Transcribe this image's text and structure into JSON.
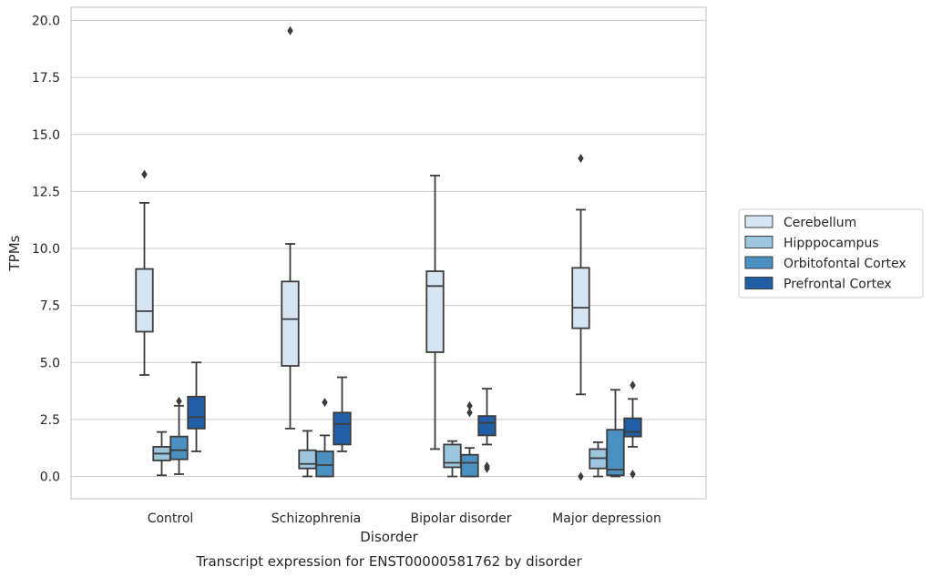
{
  "caption": "Transcript expression for ENST00000581762 by disorder",
  "chart_data": {
    "type": "boxplot",
    "title": "",
    "xlabel": "Disorder",
    "ylabel": "TPMs",
    "ylim": [
      -0.95,
      20.5
    ],
    "yticks": [
      0.0,
      2.5,
      5.0,
      7.5,
      10.0,
      12.5,
      15.0,
      17.5,
      20.0
    ],
    "ytick_labels": [
      "0.0",
      "2.5",
      "5.0",
      "7.5",
      "10.0",
      "12.5",
      "15.0",
      "17.5",
      "20.0"
    ],
    "grid": true,
    "legend_position": "right",
    "categories": [
      "Control",
      "Schizophrenia",
      "Bipolar disorder",
      "Major depression"
    ],
    "series": [
      {
        "name": "Cerebellum",
        "color": "#d6e5f4",
        "boxes": [
          {
            "whislo": 4.45,
            "q1": 6.35,
            "med": 7.25,
            "q3": 9.1,
            "whishi": 12.0,
            "fliers": [
              13.25
            ]
          },
          {
            "whislo": 2.1,
            "q1": 4.85,
            "med": 6.9,
            "q3": 8.55,
            "whishi": 10.2,
            "fliers": [
              19.55
            ]
          },
          {
            "whislo": 1.2,
            "q1": 5.45,
            "med": 8.35,
            "q3": 9.0,
            "whishi": 13.2,
            "fliers": []
          },
          {
            "whislo": 3.6,
            "q1": 6.5,
            "med": 7.4,
            "q3": 9.15,
            "whishi": 11.7,
            "fliers": [
              13.95,
              0.0
            ]
          }
        ]
      },
      {
        "name": "Hipppocampus",
        "color": "#9cc5de",
        "boxes": [
          {
            "whislo": 0.05,
            "q1": 0.7,
            "med": 1.0,
            "q3": 1.3,
            "whishi": 1.95,
            "fliers": []
          },
          {
            "whislo": 0.0,
            "q1": 0.35,
            "med": 0.55,
            "q3": 1.15,
            "whishi": 2.0,
            "fliers": []
          },
          {
            "whislo": 0.0,
            "q1": 0.4,
            "med": 0.6,
            "q3": 1.4,
            "whishi": 1.55,
            "fliers": []
          },
          {
            "whislo": 0.0,
            "q1": 0.35,
            "med": 0.8,
            "q3": 1.2,
            "whishi": 1.5,
            "fliers": []
          }
        ]
      },
      {
        "name": "Orbitofontal Cortex",
        "color": "#4a90c0",
        "boxes": [
          {
            "whislo": 0.1,
            "q1": 0.75,
            "med": 1.15,
            "q3": 1.75,
            "whishi": 3.1,
            "fliers": [
              3.3
            ]
          },
          {
            "whislo": 0.0,
            "q1": 0.0,
            "med": 0.5,
            "q3": 1.1,
            "whishi": 1.8,
            "fliers": [
              3.25
            ]
          },
          {
            "whislo": 0.0,
            "q1": 0.0,
            "med": 0.6,
            "q3": 0.95,
            "whishi": 1.25,
            "fliers": [
              3.1,
              2.8
            ]
          },
          {
            "whislo": 0.0,
            "q1": 0.05,
            "med": 0.3,
            "q3": 2.05,
            "whishi": 3.8,
            "fliers": []
          }
        ]
      },
      {
        "name": "Prefrontal Cortex",
        "color": "#205fa5",
        "boxes": [
          {
            "whislo": 1.1,
            "q1": 2.1,
            "med": 2.6,
            "q3": 3.5,
            "whishi": 5.0,
            "fliers": []
          },
          {
            "whislo": 1.1,
            "q1": 1.4,
            "med": 2.3,
            "q3": 2.8,
            "whishi": 4.35,
            "fliers": []
          },
          {
            "whislo": 1.4,
            "q1": 1.8,
            "med": 2.35,
            "q3": 2.65,
            "whishi": 3.85,
            "fliers": [
              0.45,
              0.35
            ]
          },
          {
            "whislo": 1.3,
            "q1": 1.75,
            "med": 1.95,
            "q3": 2.55,
            "whishi": 3.4,
            "fliers": [
              4.0,
              0.1
            ]
          }
        ]
      }
    ]
  }
}
